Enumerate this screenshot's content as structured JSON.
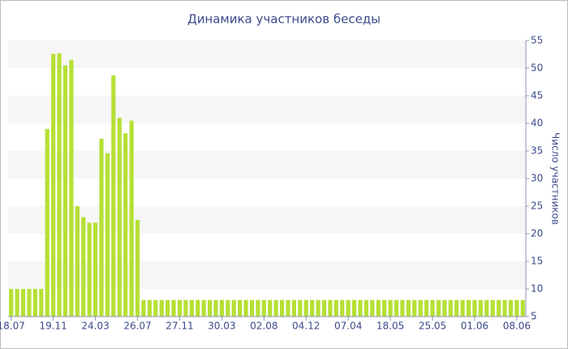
{
  "chart_data": {
    "type": "bar",
    "title": "Динамика участников беседы",
    "y_axis_label": "Число участников",
    "categories": [
      "18.07",
      null,
      null,
      null,
      null,
      null,
      null,
      "19.11",
      null,
      null,
      null,
      null,
      null,
      null,
      "24.03",
      null,
      null,
      null,
      null,
      null,
      null,
      "26.07",
      null,
      null,
      null,
      null,
      null,
      null,
      "27.11",
      null,
      null,
      null,
      null,
      null,
      null,
      "30.03",
      null,
      null,
      null,
      null,
      null,
      null,
      "02.08",
      null,
      null,
      null,
      null,
      null,
      null,
      "04.12",
      null,
      null,
      null,
      null,
      null,
      null,
      "07.04",
      null,
      null,
      null,
      null,
      null,
      null,
      "18.05",
      null,
      null,
      null,
      null,
      null,
      null,
      "25.05",
      null,
      null,
      null,
      null,
      null,
      null,
      "01.06",
      null,
      null,
      null,
      null,
      null,
      null,
      "08.06",
      null
    ],
    "values": [
      10,
      10,
      10,
      10,
      10,
      10,
      39,
      52.6,
      52.7,
      50.5,
      51.5,
      25,
      23,
      22,
      22,
      37.2,
      34.6,
      48.7,
      41,
      38.2,
      40.5,
      22.5,
      8,
      8,
      8,
      8,
      8,
      8,
      8,
      8,
      8,
      8,
      8,
      8,
      8,
      8,
      8,
      8,
      8,
      8,
      8,
      8,
      8,
      8,
      8,
      8,
      8,
      8,
      8,
      8,
      8,
      8,
      8,
      8,
      8,
      8,
      8,
      8,
      8,
      8,
      8,
      8,
      8,
      8,
      8,
      8,
      8,
      8,
      8,
      8,
      8,
      8,
      8,
      8,
      8,
      8,
      8,
      8,
      8,
      8,
      8,
      8,
      8,
      8,
      8,
      8
    ],
    "color": "#b5e034",
    "ylim": [
      5,
      55
    ],
    "yticks": [
      5,
      10,
      15,
      20,
      25,
      30,
      35,
      40,
      45,
      50,
      55
    ],
    "grid": true
  }
}
